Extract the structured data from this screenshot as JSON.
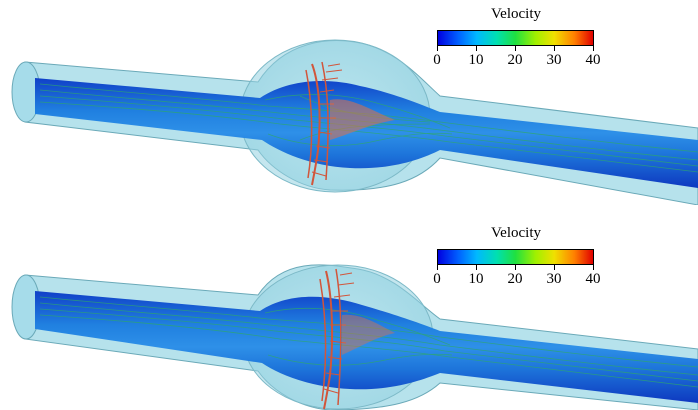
{
  "legends": [
    {
      "title": "Velocity",
      "ticks": [
        "0",
        "10",
        "20",
        "30",
        "40"
      ],
      "colorscale": [
        "#0000e0",
        "#0060ff",
        "#00b8ff",
        "#00e0b0",
        "#20e040",
        "#a0f000",
        "#f0e000",
        "#ff8000",
        "#e00000"
      ],
      "range": [
        0,
        40
      ]
    },
    {
      "title": "Velocity",
      "ticks": [
        "0",
        "10",
        "20",
        "30",
        "40"
      ],
      "colorscale": [
        "#0000e0",
        "#0060ff",
        "#00b8ff",
        "#00e0b0",
        "#20e040",
        "#a0f000",
        "#f0e000",
        "#ff8000",
        "#e00000"
      ],
      "range": [
        0,
        40
      ]
    }
  ],
  "colors": {
    "vessel_wall": "#9ed8e6",
    "vessel_core": "#1a6cd8",
    "streamline": "#2ea86a",
    "jet": "#d2553a"
  }
}
